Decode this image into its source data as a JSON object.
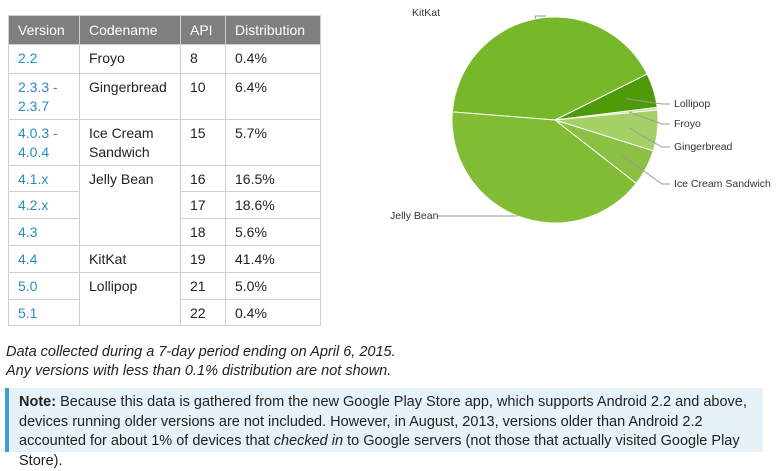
{
  "table": {
    "headers": [
      "Version",
      "Codename",
      "API",
      "Distribution"
    ],
    "rows": [
      {
        "version": "2.2",
        "codename": "Froyo",
        "api": "8",
        "distribution": "0.4%"
      },
      {
        "version": "2.3.3 - 2.3.7",
        "codename": "Gingerbread",
        "api": "10",
        "distribution": "6.4%"
      },
      {
        "version": "4.0.3 - 4.0.4",
        "codename": "Ice Cream Sandwich",
        "api": "15",
        "distribution": "5.7%"
      },
      {
        "version": "4.1.x",
        "codename": "Jelly Bean",
        "api": "16",
        "distribution": "16.5%"
      },
      {
        "version": "4.2.x",
        "codename": "",
        "api": "17",
        "distribution": "18.6%"
      },
      {
        "version": "4.3",
        "codename": "",
        "api": "18",
        "distribution": "5.6%"
      },
      {
        "version": "4.4",
        "codename": "KitKat",
        "api": "19",
        "distribution": "41.4%"
      },
      {
        "version": "5.0",
        "codename": "Lollipop",
        "api": "21",
        "distribution": "5.0%"
      },
      {
        "version": "5.1",
        "codename": "",
        "api": "22",
        "distribution": "0.4%"
      }
    ]
  },
  "chart_data": {
    "type": "pie",
    "slices": [
      {
        "label": "KitKat",
        "value": 41.4,
        "color": "#77b82a"
      },
      {
        "label": "Lollipop",
        "value": 5.4,
        "color": "#4e9a06"
      },
      {
        "label": "Froyo",
        "value": 0.4,
        "color": "#c2e08e"
      },
      {
        "label": "Gingerbread",
        "value": 6.4,
        "color": "#a5d066"
      },
      {
        "label": "Ice Cream Sandwich",
        "value": 5.7,
        "color": "#8cc043"
      },
      {
        "label": "Jelly Bean",
        "value": 40.7,
        "color": "#80bd35"
      }
    ],
    "colors": {
      "label_line": "#9a9a9a"
    }
  },
  "footnotes": {
    "line1": "Data collected during a 7-day period ending on April 6, 2015.",
    "line2": "Any versions with less than 0.1% distribution are not shown."
  },
  "note": {
    "label": "Note:",
    "text_part1": " Because this data is gathered from the new Google Play Store app, which supports Android 2.2 and above, devices running older versions are not included. However, in August, 2013, versions older than Android 2.2 accounted for about 1% of devices that ",
    "emphasis": "checked in",
    "text_part2": " to Google servers (not those that actually visited Google Play Store)."
  }
}
